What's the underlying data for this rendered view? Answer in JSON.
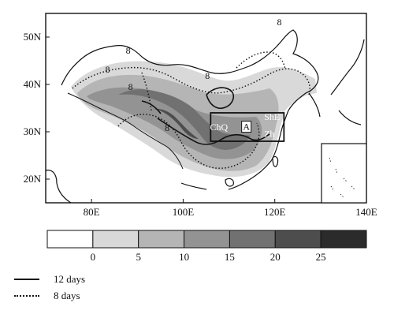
{
  "colors": {
    "background": "#ffffff",
    "frame": "#111111",
    "bins": [
      "#ffffff",
      "#d9d9d9",
      "#b5b5b5",
      "#939393",
      "#717171",
      "#4d4d4d",
      "#2b2b2b"
    ]
  },
  "map": {
    "lon_range": [
      70,
      140
    ],
    "lat_range": [
      15,
      55
    ],
    "lon_ticks": [
      {
        "value": 80,
        "label": "80E"
      },
      {
        "value": 100,
        "label": "100E"
      },
      {
        "value": 120,
        "label": "120E"
      },
      {
        "value": 140,
        "label": "140E"
      }
    ],
    "lat_ticks": [
      {
        "value": 20,
        "label": "20N"
      },
      {
        "value": 30,
        "label": "30N"
      },
      {
        "value": 40,
        "label": "40N"
      },
      {
        "value": 50,
        "label": "50N"
      }
    ],
    "box_region": {
      "lon": [
        106,
        122
      ],
      "lat": [
        28,
        34
      ]
    },
    "region_labels": [
      {
        "text": "ChQ",
        "lon": 107.8,
        "lat": 30.3
      },
      {
        "text": "A",
        "lon": 113.8,
        "lat": 30.4
      },
      {
        "text": "ShE",
        "lon": 119.4,
        "lat": 32.5
      },
      {
        "text": "Zh",
        "lon": 118.8,
        "lat": 28.9
      }
    ],
    "contour_labels": [
      {
        "text": "8",
        "lon": 83.5,
        "lat": 42.5
      },
      {
        "text": "8",
        "lon": 88.5,
        "lat": 38.8
      },
      {
        "text": "8",
        "lon": 96.5,
        "lat": 30.2
      },
      {
        "text": "8",
        "lon": 105.3,
        "lat": 41.2
      },
      {
        "text": "8",
        "lon": 121.0,
        "lat": 52.5
      },
      {
        "text": "8",
        "lon": 88.0,
        "lat": 46.5
      }
    ]
  },
  "colorbar": {
    "boundaries": [
      "0",
      "5",
      "10",
      "15",
      "20",
      "25"
    ]
  },
  "legend": [
    {
      "style": "solid",
      "label": "12 days"
    },
    {
      "style": "dotted",
      "label": "8 days"
    }
  ]
}
